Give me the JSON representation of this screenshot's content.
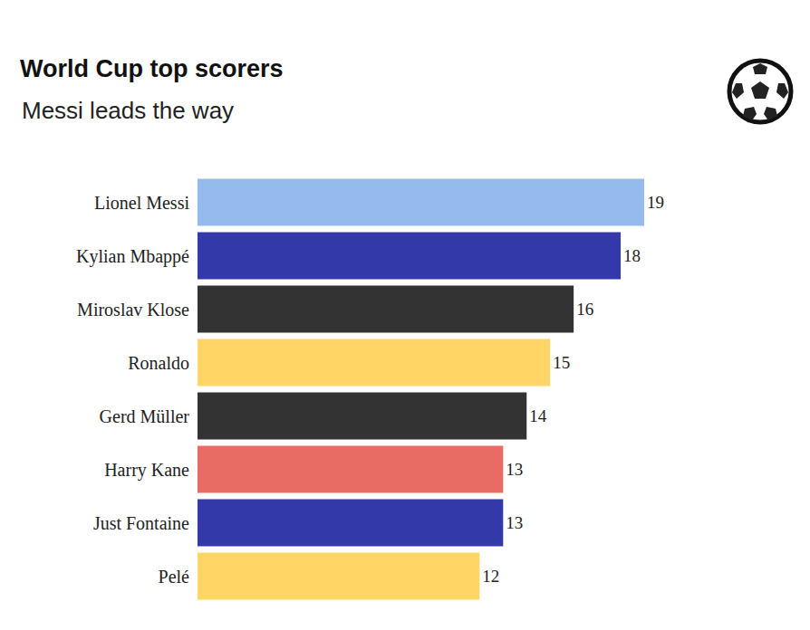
{
  "chart_data": {
    "type": "bar",
    "title": "World Cup top scorers",
    "subtitle": "Messi leads the way",
    "orientation": "horizontal",
    "categories": [
      "Lionel Messi",
      "Kylian Mbappé",
      "Miroslav Klose",
      "Ronaldo",
      "Gerd Müller",
      "Harry Kane",
      "Just Fontaine",
      "Pelé"
    ],
    "values": [
      19,
      18,
      16,
      15,
      14,
      13,
      13,
      12
    ],
    "colors": [
      "#94bbec",
      "#3339a8",
      "#333333",
      "#ffd566",
      "#333333",
      "#e86c64",
      "#3339a8",
      "#ffd566"
    ],
    "xlim": [
      0,
      19
    ],
    "data_labels": true,
    "tick_labels": "y",
    "grid": false
  }
}
